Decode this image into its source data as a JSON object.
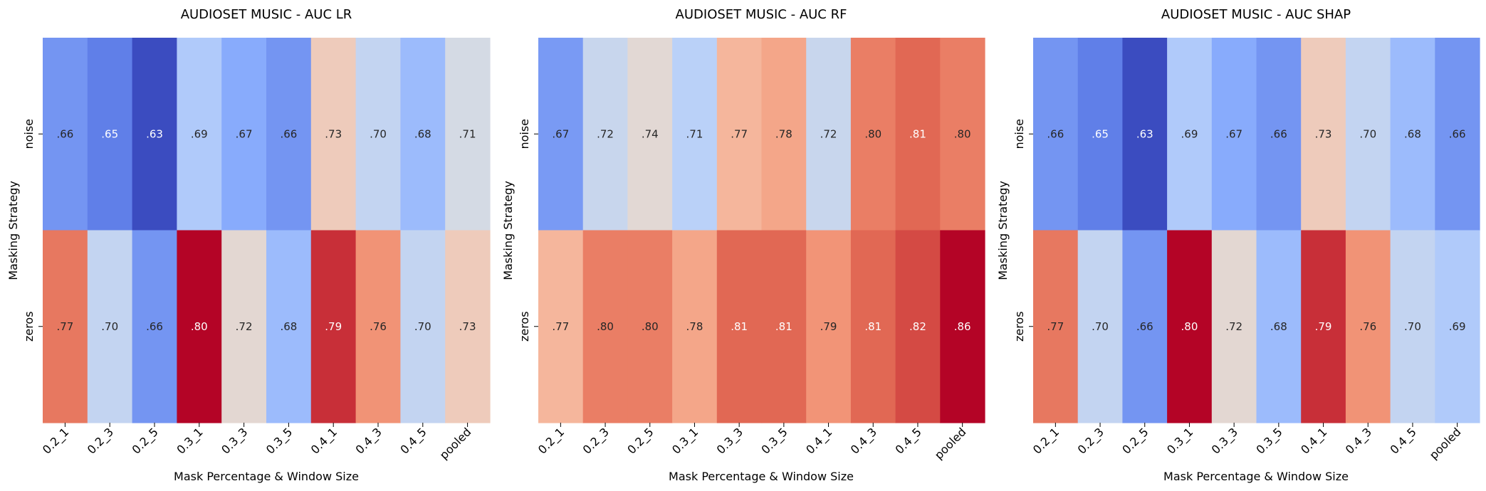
{
  "chart_data": [
    {
      "type": "heatmap",
      "title": "AUDIOSET MUSIC - AUC LR",
      "xlabel": "Mask Percentage & Window Size",
      "ylabel": "Masking Strategy",
      "x_categories": [
        "0.2_1",
        "0.2_3",
        "0.2_5",
        "0.3_1",
        "0.3_3",
        "0.3_5",
        "0.4_1",
        "0.4_3",
        "0.4_5",
        "pooled"
      ],
      "y_categories": [
        "noise",
        "zeros"
      ],
      "values": [
        [
          0.66,
          0.65,
          0.63,
          0.69,
          0.67,
          0.66,
          0.73,
          0.7,
          0.68,
          0.71
        ],
        [
          0.77,
          0.7,
          0.66,
          0.8,
          0.72,
          0.68,
          0.79,
          0.76,
          0.7,
          0.73
        ]
      ],
      "cell_labels": [
        [
          ".66",
          ".65",
          ".63",
          ".69",
          ".67",
          ".66",
          ".73",
          ".70",
          ".68",
          ".71"
        ],
        [
          ".77",
          ".70",
          ".66",
          ".80",
          ".72",
          ".68",
          ".79",
          ".76",
          ".70",
          ".73"
        ]
      ],
      "colormap": "coolwarm",
      "color_range": [
        0.63,
        0.8
      ]
    },
    {
      "type": "heatmap",
      "title": "AUDIOSET MUSIC - AUC RF",
      "xlabel": "Mask Percentage & Window Size",
      "ylabel": "Masking Strategy",
      "x_categories": [
        "0.2_1",
        "0.2_3",
        "0.2_5",
        "0.3_1",
        "0.3_3",
        "0.3_5",
        "0.4_1",
        "0.4_3",
        "0.4_5",
        "pooled"
      ],
      "y_categories": [
        "noise",
        "zeros"
      ],
      "values": [
        [
          0.67,
          0.72,
          0.74,
          0.71,
          0.77,
          0.78,
          0.72,
          0.8,
          0.81,
          0.8
        ],
        [
          0.77,
          0.8,
          0.8,
          0.78,
          0.81,
          0.81,
          0.79,
          0.81,
          0.82,
          0.86
        ]
      ],
      "cell_labels": [
        [
          ".67",
          ".72",
          ".74",
          ".71",
          ".77",
          ".78",
          ".72",
          ".80",
          ".81",
          ".80"
        ],
        [
          ".77",
          ".80",
          ".80",
          ".78",
          ".81",
          ".81",
          ".79",
          ".81",
          ".82",
          ".86"
        ]
      ],
      "colormap": "coolwarm",
      "color_range": [
        0.63,
        0.84
      ]
    },
    {
      "type": "heatmap",
      "title": "AUDIOSET MUSIC - AUC SHAP",
      "xlabel": "Mask Percentage & Window Size",
      "ylabel": "Masking Strategy",
      "x_categories": [
        "0.2_1",
        "0.2_3",
        "0.2_5",
        "0.3_1",
        "0.3_3",
        "0.3_5",
        "0.4_1",
        "0.4_3",
        "0.4_5",
        "pooled"
      ],
      "y_categories": [
        "noise",
        "zeros"
      ],
      "values": [
        [
          0.66,
          0.65,
          0.63,
          0.69,
          0.67,
          0.66,
          0.73,
          0.7,
          0.68,
          0.66
        ],
        [
          0.77,
          0.7,
          0.66,
          0.8,
          0.72,
          0.68,
          0.79,
          0.76,
          0.7,
          0.69
        ]
      ],
      "cell_labels": [
        [
          ".66",
          ".65",
          ".63",
          ".69",
          ".67",
          ".66",
          ".73",
          ".70",
          ".68",
          ".66"
        ],
        [
          ".77",
          ".70",
          ".66",
          ".80",
          ".72",
          ".68",
          ".79",
          ".76",
          ".70",
          ".69"
        ]
      ],
      "colormap": "coolwarm",
      "color_range": [
        0.63,
        0.8
      ]
    }
  ]
}
